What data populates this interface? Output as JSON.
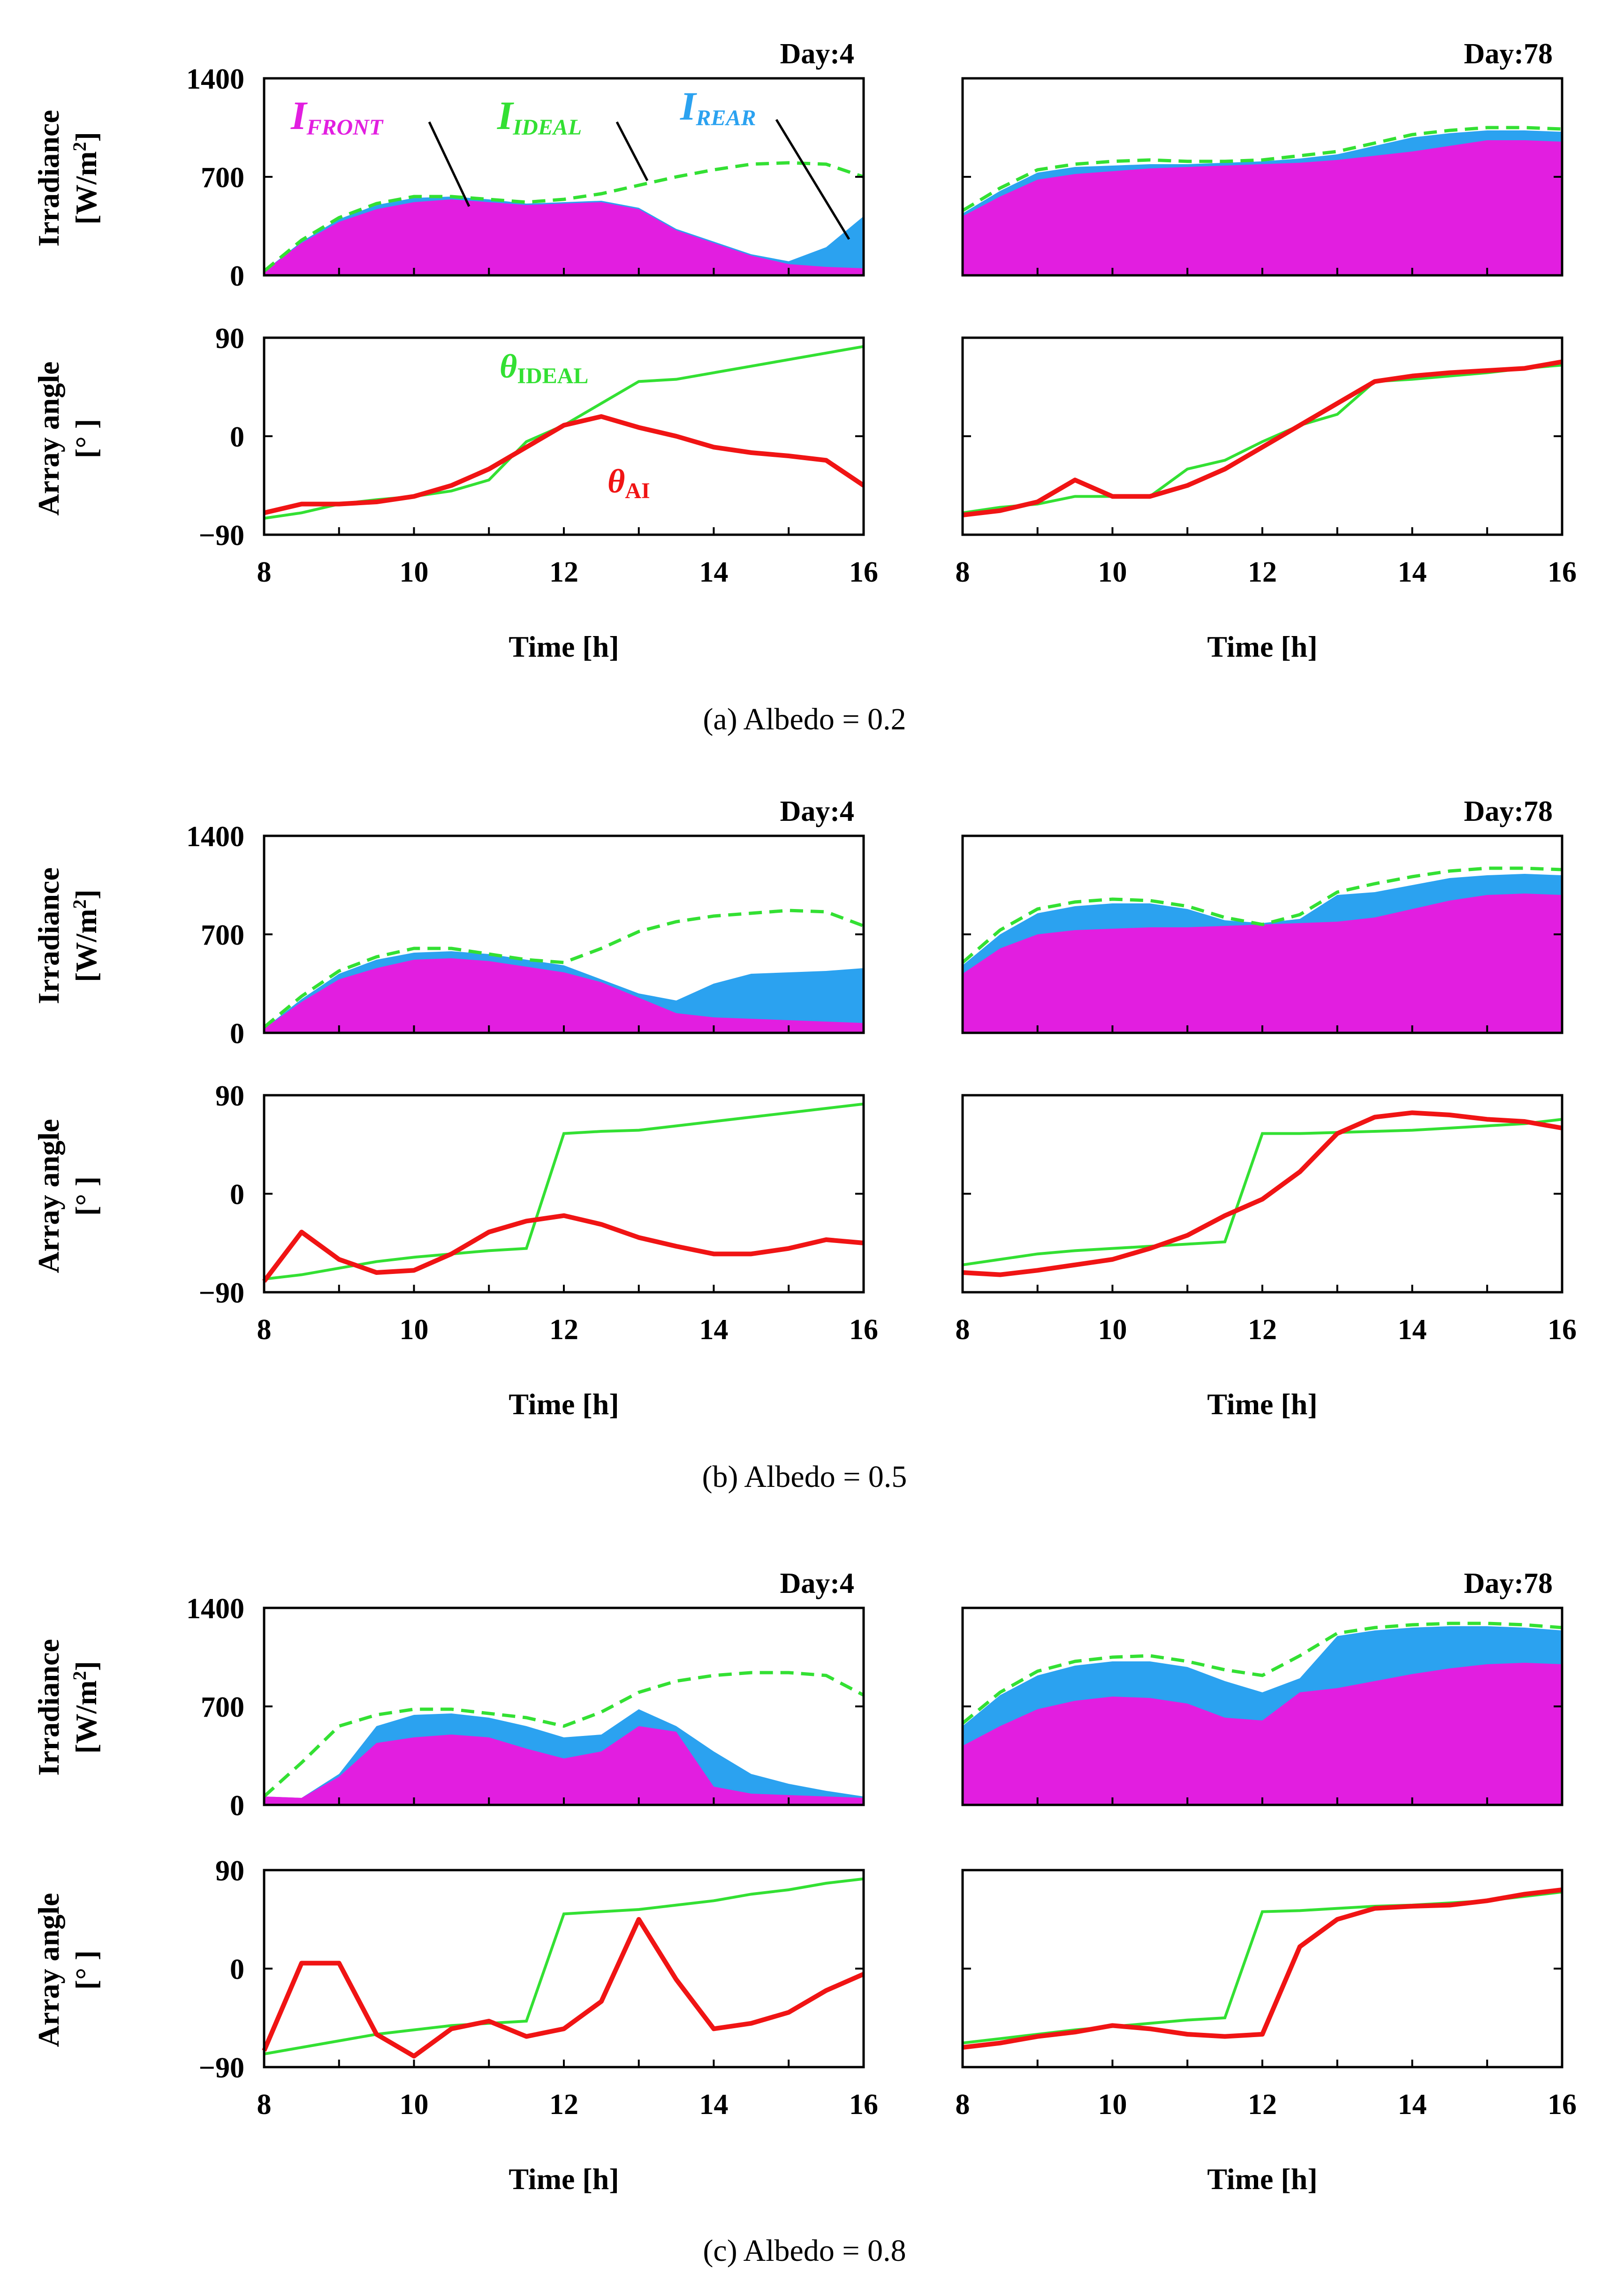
{
  "colors": {
    "front": "#e21ee0",
    "rear": "#2ba2f0",
    "ideal": "#33e033",
    "ai": "#f01414",
    "axis": "#000000"
  },
  "labels": {
    "irradiance_line1": "Irradiance",
    "irradiance_line2": "[W/m",
    "irradiance_sup": "2",
    "irradiance_close": "]",
    "angle_line1": "Array angle",
    "angle_line2": "[°  ]",
    "xlabel": "Time [h]",
    "ann_front_main": "I",
    "ann_front_sub": "FRONT",
    "ann_ideal_main": "I",
    "ann_ideal_sub": "IDEAL",
    "ann_rear_main": "I",
    "ann_rear_sub": "REAR",
    "ann_theta_ideal_main": "θ",
    "ann_theta_ideal_sub": "IDEAL",
    "ann_theta_ai_main": "θ",
    "ann_theta_ai_sub": "AI"
  },
  "captions": [
    "(a) Albedo = 0.2",
    "(b) Albedo = 0.5",
    "(c) Albedo = 0.8"
  ],
  "chart_data": [
    {
      "type": "area",
      "panel": "a-day4-irradiance",
      "title": "Day:4",
      "xlabel": "",
      "ylabel": "Irradiance [W/m2]",
      "xlim": [
        8,
        16
      ],
      "ylim": [
        0,
        1400
      ],
      "yticks": [
        0,
        700,
        1400
      ],
      "x": [
        8,
        8.5,
        9,
        9.5,
        10,
        10.5,
        11,
        11.5,
        12,
        12.5,
        13,
        13.5,
        14,
        14.5,
        15,
        15.5,
        16
      ],
      "series": [
        {
          "name": "I_FRONT",
          "values": [
            30,
            230,
            380,
            470,
            520,
            540,
            520,
            500,
            510,
            520,
            470,
            320,
            230,
            140,
            80,
            60,
            50
          ]
        },
        {
          "name": "I_TOTAL",
          "values": [
            30,
            240,
            400,
            500,
            550,
            560,
            540,
            510,
            520,
            530,
            480,
            330,
            240,
            150,
            100,
            200,
            420
          ]
        },
        {
          "name": "I_IDEAL",
          "values": [
            30,
            250,
            410,
            510,
            560,
            560,
            540,
            520,
            540,
            580,
            640,
            700,
            750,
            790,
            800,
            790,
            700
          ]
        }
      ]
    },
    {
      "type": "line",
      "panel": "a-day4-angle",
      "title": "",
      "xlabel": "Time [h]",
      "ylabel": "Array angle [°]",
      "xlim": [
        8,
        16
      ],
      "ylim": [
        -90,
        90
      ],
      "yticks": [
        -90,
        0,
        90
      ],
      "xticks": [
        8,
        10,
        12,
        14,
        16
      ],
      "x": [
        8,
        8.5,
        9,
        9.5,
        10,
        10.5,
        11,
        11.5,
        12,
        12.5,
        13,
        13.5,
        14,
        14.5,
        15,
        15.5,
        16
      ],
      "series": [
        {
          "name": "θ_IDEAL",
          "values": [
            -75,
            -70,
            -62,
            -58,
            -55,
            -50,
            -40,
            -5,
            10,
            30,
            50,
            52,
            58,
            64,
            70,
            76,
            82
          ]
        },
        {
          "name": "θ_AI",
          "values": [
            -70,
            -62,
            -62,
            -60,
            -55,
            -45,
            -30,
            -10,
            10,
            18,
            8,
            0,
            -10,
            -15,
            -18,
            -22,
            -45
          ]
        }
      ]
    },
    {
      "type": "area",
      "panel": "a-day78-irradiance",
      "title": "Day:78",
      "xlabel": "",
      "ylabel": "Irradiance [W/m2]",
      "xlim": [
        8,
        16
      ],
      "ylim": [
        0,
        1400
      ],
      "yticks": [
        0,
        700,
        1400
      ],
      "x": [
        8,
        8.5,
        9,
        9.5,
        10,
        10.5,
        11,
        11.5,
        12,
        12.5,
        13,
        13.5,
        14,
        14.5,
        15,
        15.5,
        16
      ],
      "series": [
        {
          "name": "I_FRONT",
          "values": [
            420,
            560,
            680,
            720,
            740,
            760,
            770,
            780,
            790,
            800,
            820,
            850,
            880,
            920,
            960,
            960,
            950
          ]
        },
        {
          "name": "I_TOTAL",
          "values": [
            440,
            600,
            730,
            770,
            780,
            790,
            790,
            800,
            810,
            830,
            860,
            920,
            980,
            1010,
            1030,
            1030,
            1020
          ]
        },
        {
          "name": "I_IDEAL",
          "values": [
            460,
            620,
            750,
            790,
            810,
            820,
            810,
            810,
            820,
            850,
            880,
            940,
            1000,
            1030,
            1050,
            1050,
            1040
          ]
        }
      ]
    },
    {
      "type": "line",
      "panel": "a-day78-angle",
      "title": "",
      "xlabel": "Time [h]",
      "ylabel": "Array angle [°]",
      "xlim": [
        8,
        16
      ],
      "ylim": [
        -90,
        90
      ],
      "yticks": [
        -90,
        0,
        90
      ],
      "xticks": [
        8,
        10,
        12,
        14,
        16
      ],
      "x": [
        8,
        8.5,
        9,
        9.5,
        10,
        10.5,
        11,
        11.5,
        12,
        12.5,
        13,
        13.5,
        14,
        14.5,
        15,
        15.5,
        16
      ],
      "series": [
        {
          "name": "θ_IDEAL",
          "values": [
            -70,
            -65,
            -62,
            -55,
            -55,
            -55,
            -30,
            -22,
            -5,
            10,
            20,
            50,
            52,
            55,
            58,
            62,
            65
          ]
        },
        {
          "name": "θ_AI",
          "values": [
            -72,
            -68,
            -60,
            -40,
            -55,
            -55,
            -45,
            -30,
            -10,
            10,
            30,
            50,
            55,
            58,
            60,
            62,
            68
          ]
        }
      ]
    },
    {
      "type": "area",
      "panel": "b-day4-irradiance",
      "title": "Day:4",
      "xlabel": "",
      "ylabel": "Irradiance [W/m2]",
      "xlim": [
        8,
        16
      ],
      "ylim": [
        0,
        1400
      ],
      "yticks": [
        0,
        700,
        1400
      ],
      "x": [
        8,
        8.5,
        9,
        9.5,
        10,
        10.5,
        11,
        11.5,
        12,
        12.5,
        13,
        13.5,
        14,
        14.5,
        15,
        15.5,
        16
      ],
      "series": [
        {
          "name": "I_FRONT",
          "values": [
            30,
            220,
            380,
            460,
            520,
            530,
            510,
            470,
            430,
            360,
            250,
            140,
            110,
            100,
            90,
            80,
            70
          ]
        },
        {
          "name": "I_TOTAL",
          "values": [
            30,
            240,
            420,
            520,
            570,
            580,
            560,
            520,
            480,
            380,
            280,
            230,
            350,
            420,
            430,
            440,
            460
          ]
        },
        {
          "name": "I_IDEAL",
          "values": [
            40,
            260,
            440,
            540,
            600,
            600,
            560,
            520,
            500,
            600,
            720,
            790,
            830,
            850,
            870,
            860,
            760
          ]
        }
      ]
    },
    {
      "type": "line",
      "panel": "b-day4-angle",
      "title": "",
      "xlabel": "Time [h]",
      "ylabel": "Array angle [°]",
      "xlim": [
        8,
        16
      ],
      "ylim": [
        -90,
        90
      ],
      "yticks": [
        -90,
        0,
        90
      ],
      "xticks": [
        8,
        10,
        12,
        14,
        16
      ],
      "x": [
        8,
        8.5,
        9,
        9.5,
        10,
        10.5,
        11,
        11.5,
        12,
        12.5,
        13,
        13.5,
        14,
        14.5,
        15,
        15.5,
        16
      ],
      "series": [
        {
          "name": "θ_IDEAL",
          "values": [
            -78,
            -74,
            -68,
            -62,
            -58,
            -55,
            -52,
            -50,
            55,
            57,
            58,
            62,
            66,
            70,
            74,
            78,
            82
          ]
        },
        {
          "name": "θ_AI",
          "values": [
            -80,
            -35,
            -60,
            -72,
            -70,
            -55,
            -35,
            -25,
            -20,
            -28,
            -40,
            -48,
            -55,
            -55,
            -50,
            -42,
            -45
          ]
        }
      ]
    },
    {
      "type": "area",
      "panel": "b-day78-irradiance",
      "title": "Day:78",
      "xlabel": "",
      "ylabel": "Irradiance [W/m2]",
      "xlim": [
        8,
        16
      ],
      "ylim": [
        0,
        1400
      ],
      "yticks": [
        0,
        700,
        1400
      ],
      "x": [
        8,
        8.5,
        9,
        9.5,
        10,
        10.5,
        11,
        11.5,
        12,
        12.5,
        13,
        13.5,
        14,
        14.5,
        15,
        15.5,
        16
      ],
      "series": [
        {
          "name": "I_FRONT",
          "values": [
            420,
            600,
            700,
            730,
            740,
            750,
            750,
            760,
            770,
            780,
            790,
            820,
            880,
            940,
            980,
            990,
            980
          ]
        },
        {
          "name": "I_TOTAL",
          "values": [
            480,
            700,
            850,
            900,
            920,
            920,
            880,
            800,
            780,
            810,
            980,
            1000,
            1050,
            1100,
            1120,
            1130,
            1120
          ]
        },
        {
          "name": "I_IDEAL",
          "values": [
            500,
            730,
            880,
            930,
            950,
            940,
            900,
            820,
            770,
            840,
            1000,
            1060,
            1110,
            1150,
            1170,
            1170,
            1160
          ]
        }
      ]
    },
    {
      "type": "line",
      "panel": "b-day78-angle",
      "title": "",
      "xlabel": "Time [h]",
      "ylabel": "Array angle [°]",
      "xlim": [
        8,
        16
      ],
      "ylim": [
        -90,
        90
      ],
      "yticks": [
        -90,
        0,
        90
      ],
      "xticks": [
        8,
        10,
        12,
        14,
        16
      ],
      "x": [
        8,
        8.5,
        9,
        9.5,
        10,
        10.5,
        11,
        11.5,
        12,
        12.5,
        13,
        13.5,
        14,
        14.5,
        15,
        15.5,
        16
      ],
      "series": [
        {
          "name": "θ_IDEAL",
          "values": [
            -65,
            -60,
            -55,
            -52,
            -50,
            -48,
            -46,
            -44,
            55,
            55,
            56,
            57,
            58,
            60,
            62,
            64,
            68
          ]
        },
        {
          "name": "θ_AI",
          "values": [
            -72,
            -74,
            -70,
            -65,
            -60,
            -50,
            -38,
            -20,
            -5,
            20,
            55,
            70,
            74,
            72,
            68,
            66,
            60
          ]
        }
      ]
    },
    {
      "type": "area",
      "panel": "c-day4-irradiance",
      "title": "Day:4",
      "xlabel": "",
      "ylabel": "Irradiance [W/m2]",
      "xlim": [
        8,
        16
      ],
      "ylim": [
        0,
        1400
      ],
      "yticks": [
        0,
        700,
        1400
      ],
      "x": [
        8,
        8.5,
        9,
        9.5,
        10,
        10.5,
        11,
        11.5,
        12,
        12.5,
        13,
        13.5,
        14,
        14.5,
        15,
        15.5,
        16
      ],
      "series": [
        {
          "name": "I_FRONT",
          "values": [
            60,
            50,
            200,
            440,
            480,
            500,
            480,
            400,
            330,
            380,
            560,
            520,
            130,
            80,
            70,
            60,
            50
          ]
        },
        {
          "name": "I_TOTAL",
          "values": [
            60,
            50,
            220,
            560,
            640,
            650,
            620,
            560,
            480,
            500,
            680,
            560,
            380,
            220,
            150,
            100,
            60
          ]
        },
        {
          "name": "I_IDEAL",
          "values": [
            60,
            300,
            560,
            640,
            680,
            680,
            650,
            620,
            560,
            660,
            800,
            880,
            920,
            940,
            940,
            920,
            780
          ]
        }
      ]
    },
    {
      "type": "line",
      "panel": "c-day4-angle",
      "title": "",
      "xlabel": "Time [h]",
      "ylabel": "Array angle [°]",
      "xlim": [
        8,
        16
      ],
      "ylim": [
        -90,
        90
      ],
      "yticks": [
        -90,
        0,
        90
      ],
      "xticks": [
        8,
        10,
        12,
        14,
        16
      ],
      "x": [
        8,
        8.5,
        9,
        9.5,
        10,
        10.5,
        11,
        11.5,
        12,
        12.5,
        13,
        13.5,
        14,
        14.5,
        15,
        15.5,
        16
      ],
      "series": [
        {
          "name": "θ_IDEAL",
          "values": [
            -78,
            -72,
            -66,
            -60,
            -56,
            -52,
            -50,
            -48,
            50,
            52,
            54,
            58,
            62,
            68,
            72,
            78,
            82
          ]
        },
        {
          "name": "θ_AI",
          "values": [
            -75,
            5,
            5,
            -60,
            -80,
            -55,
            -48,
            -62,
            -55,
            -30,
            45,
            -10,
            -55,
            -50,
            -40,
            -20,
            -5
          ]
        }
      ]
    },
    {
      "type": "area",
      "panel": "c-day78-irradiance",
      "title": "Day:78",
      "xlabel": "",
      "ylabel": "Irradiance [W/m2]",
      "xlim": [
        8,
        16
      ],
      "ylim": [
        0,
        1400
      ],
      "yticks": [
        0,
        700,
        1400
      ],
      "x": [
        8,
        8.5,
        9,
        9.5,
        10,
        10.5,
        11,
        11.5,
        12,
        12.5,
        13,
        13.5,
        14,
        14.5,
        15,
        15.5,
        16
      ],
      "series": [
        {
          "name": "I_FRONT",
          "values": [
            420,
            560,
            680,
            740,
            770,
            760,
            720,
            620,
            600,
            800,
            830,
            880,
            930,
            970,
            1000,
            1010,
            1000
          ]
        },
        {
          "name": "I_TOTAL",
          "values": [
            560,
            780,
            920,
            990,
            1020,
            1020,
            980,
            880,
            800,
            900,
            1200,
            1240,
            1260,
            1270,
            1270,
            1260,
            1240
          ]
        },
        {
          "name": "I_IDEAL",
          "values": [
            580,
            800,
            950,
            1020,
            1050,
            1060,
            1020,
            960,
            920,
            1060,
            1220,
            1260,
            1280,
            1290,
            1290,
            1280,
            1260
          ]
        }
      ]
    },
    {
      "type": "line",
      "panel": "c-day78-angle",
      "title": "",
      "xlabel": "Time [h]",
      "ylabel": "Array angle [°]",
      "xlim": [
        8,
        16
      ],
      "ylim": [
        -90,
        90
      ],
      "yticks": [
        -90,
        0,
        90
      ],
      "xticks": [
        8,
        10,
        12,
        14,
        16
      ],
      "x": [
        8,
        8.5,
        9,
        9.5,
        10,
        10.5,
        11,
        11.5,
        12,
        12.5,
        13,
        13.5,
        14,
        14.5,
        15,
        15.5,
        16
      ],
      "series": [
        {
          "name": "θ_IDEAL",
          "values": [
            -68,
            -64,
            -60,
            -56,
            -53,
            -50,
            -47,
            -45,
            52,
            53,
            55,
            57,
            58,
            60,
            62,
            66,
            70
          ]
        },
        {
          "name": "θ_AI",
          "values": [
            -72,
            -68,
            -62,
            -58,
            -52,
            -55,
            -60,
            -62,
            -60,
            20,
            45,
            55,
            57,
            58,
            62,
            68,
            72
          ]
        }
      ]
    }
  ]
}
